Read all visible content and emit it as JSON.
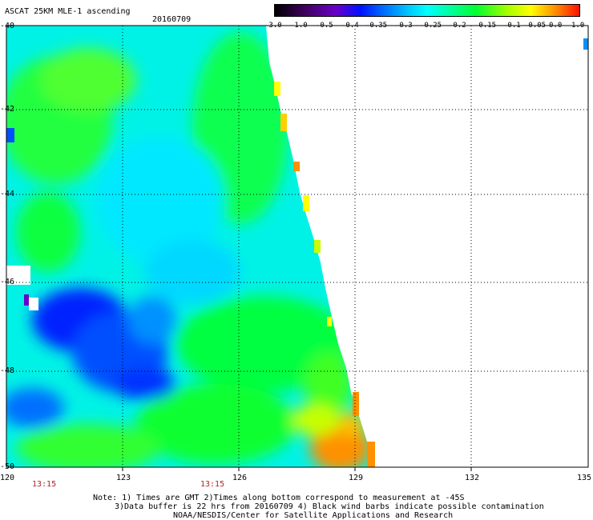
{
  "header": {
    "title": "ASCAT 25KM MLE-1 ascending",
    "date": "20160709"
  },
  "colorbar": {
    "labels": [
      "-3.0",
      "-1.0",
      "-0.5",
      "-0.4",
      "-0.35",
      "-0.3",
      "-0.25",
      "-0.2",
      "-0.15",
      "-0.1",
      "-0.05",
      "0.0",
      "1.0"
    ],
    "colors": [
      "#000000",
      "#3a0050",
      "#6b00b0",
      "#0000ff",
      "#0040ff",
      "#0090ff",
      "#00d8ff",
      "#00ffd0",
      "#00ff60",
      "#60ff00",
      "#ffff00",
      "#ff9000",
      "#ff0000"
    ]
  },
  "axes": {
    "x_ticks": [
      "120",
      "123",
      "126",
      "129",
      "132",
      "135"
    ],
    "y_ticks": [
      "-40",
      "-42",
      "-44",
      "-46",
      "-48",
      "-50"
    ],
    "lon_range": [
      120,
      135
    ],
    "lat_range": [
      -50,
      -40
    ]
  },
  "times": [
    "13:15",
    "13:15"
  ],
  "footer": {
    "line1": "Note: 1) Times are GMT 2)Times along bottom correspond to measurement at -45S",
    "line2": "3)Data buffer is 22 hrs from 20160709 4) Black wind barbs indicate possible contamination",
    "line3": "NOAA/NESDIS/Center for Satellite Applications and Research"
  }
}
